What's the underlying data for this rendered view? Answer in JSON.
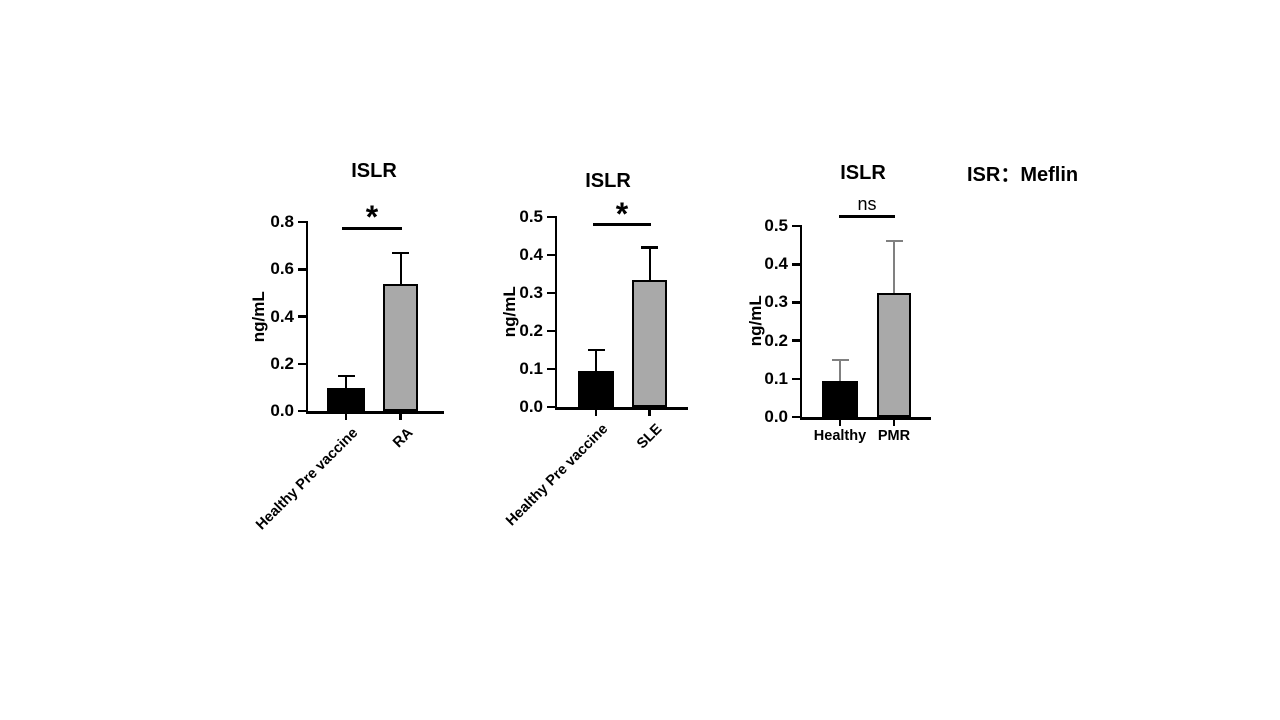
{
  "annotation": {
    "label": "ISR：Meflin"
  },
  "colors": {
    "background": "#ffffff",
    "axis": "#000000",
    "bar_black": "#000000",
    "bar_gray": "#a9a9a9",
    "error_gray": "#808080"
  },
  "chart_data": [
    {
      "type": "bar",
      "title": "ISLR",
      "ylabel": "ng/mL",
      "xlabel": "",
      "ylim": [
        0,
        0.8
      ],
      "ytick_labels": [
        "0.0",
        "0.2",
        "0.4",
        "0.6",
        "0.8"
      ],
      "categories": [
        "Healthy Pre vaccine",
        "RA"
      ],
      "values": [
        0.09,
        0.53
      ],
      "error_tops": [
        0.15,
        0.67
      ],
      "bar_colors": [
        "#000000",
        "#a9a9a9"
      ],
      "error_colors": [
        "#000000",
        "#000000"
      ],
      "significance": "*",
      "xtick_rotation": 45,
      "grid": false,
      "legend_position": "none"
    },
    {
      "type": "bar",
      "title": "ISLR",
      "ylabel": "ng/mL",
      "xlabel": "",
      "ylim": [
        0,
        0.5
      ],
      "ytick_labels": [
        "0.0",
        "0.1",
        "0.2",
        "0.3",
        "0.4",
        "0.5"
      ],
      "categories": [
        "Healthy Pre vaccine",
        "SLE"
      ],
      "values": [
        0.09,
        0.33
      ],
      "error_tops": [
        0.15,
        0.42
      ],
      "bar_colors": [
        "#000000",
        "#a9a9a9"
      ],
      "error_colors": [
        "#000000",
        "#000000"
      ],
      "significance": "*",
      "xtick_rotation": 45,
      "grid": false,
      "legend_position": "none"
    },
    {
      "type": "bar",
      "title": "ISLR",
      "ylabel": "ng/mL",
      "xlabel": "",
      "ylim": [
        0,
        0.5
      ],
      "ytick_labels": [
        "0.0",
        "0.1",
        "0.2",
        "0.3",
        "0.4",
        "0.5"
      ],
      "categories": [
        "Healthy",
        "PMR"
      ],
      "values": [
        0.09,
        0.32
      ],
      "error_tops": [
        0.15,
        0.46
      ],
      "bar_colors": [
        "#000000",
        "#a9a9a9"
      ],
      "error_colors": [
        "#808080",
        "#808080"
      ],
      "significance": "ns",
      "xtick_rotation": 0,
      "grid": false,
      "legend_position": "none"
    }
  ]
}
